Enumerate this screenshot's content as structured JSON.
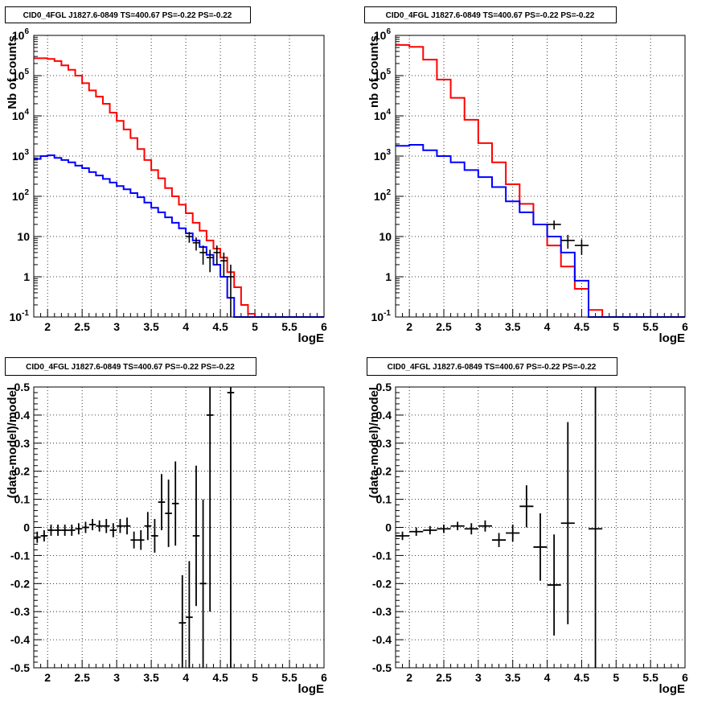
{
  "chart_data": [
    {
      "type": "line",
      "title": "CID0_4FGL J1827.6-0849 TS=400.67 PS=-0.22 PS=-0.22",
      "xlabel": "logE",
      "ylabel": "Nb of counts",
      "log_y": true,
      "xlim": [
        1.8,
        6.0
      ],
      "ylim": [
        0.1,
        1000000
      ],
      "grid": true,
      "xticks": [
        "2",
        "2.5",
        "3",
        "3.5",
        "4",
        "4.5",
        "5",
        "5.5",
        "6"
      ],
      "yticks": [
        "10^-1",
        "1",
        "10",
        "10^2",
        "10^3",
        "10^4",
        "10^5",
        "10^6"
      ],
      "bin_edges": [
        1.8,
        1.9,
        2.0,
        2.1,
        2.2,
        2.3,
        2.4,
        2.5,
        2.6,
        2.7,
        2.8,
        2.9,
        3.0,
        3.1,
        3.2,
        3.3,
        3.4,
        3.5,
        3.6,
        3.7,
        3.8,
        3.9,
        4.0,
        4.1,
        4.2,
        4.3,
        4.4,
        4.5,
        4.6,
        4.7,
        4.8,
        4.9,
        5.0,
        5.1,
        5.2,
        5.3,
        5.4,
        5.5,
        5.6,
        5.7,
        5.8,
        5.9,
        6.0
      ],
      "series": [
        {
          "color": "#ff0000",
          "values": [
            270000,
            270000,
            260000,
            230000,
            180000,
            140000,
            100000,
            65000,
            43000,
            30000,
            20000,
            12000,
            7500,
            4600,
            2800,
            1500,
            800,
            450,
            280,
            160,
            100,
            62,
            38,
            22,
            14,
            8,
            5,
            3,
            1.3,
            0.55,
            0.2,
            0.12,
            0.1,
            0.1,
            0.1,
            0.1,
            0.1,
            0.1,
            0.1,
            0.1,
            0.1,
            0.1
          ]
        },
        {
          "color": "#0000ff",
          "values": [
            850,
            1000,
            1050,
            900,
            800,
            700,
            580,
            500,
            400,
            330,
            270,
            220,
            180,
            150,
            120,
            95,
            70,
            52,
            40,
            30,
            22,
            16,
            12,
            8,
            5.5,
            3.5,
            2,
            1,
            0.3,
            0.1,
            0.1,
            0.1,
            0.1,
            0.1,
            0.1,
            0.1,
            0.1,
            0.1,
            0.1,
            0.1,
            0.1,
            0.1
          ]
        }
      ],
      "data_points": {
        "color": "#000000",
        "x": [
          4.05,
          4.15,
          4.25,
          4.35,
          4.45,
          4.55,
          4.65
        ],
        "y": [
          10,
          7,
          4,
          3,
          4,
          2.5,
          1
        ],
        "yerr": [
          3,
          2.5,
          2,
          1.7,
          2,
          1.5,
          1
        ]
      }
    },
    {
      "type": "line",
      "title": "CID0_4FGL J1827.6-0849 TS=400.67 PS=-0.22 PS=-0.22",
      "xlabel": "logE",
      "ylabel": "nb of counts",
      "log_y": true,
      "xlim": [
        1.8,
        6.0
      ],
      "ylim": [
        0.1,
        1000000
      ],
      "grid": true,
      "xticks": [
        "2",
        "2.5",
        "3",
        "3.5",
        "4",
        "4.5",
        "5",
        "5.5",
        "6"
      ],
      "yticks": [
        "10^-1",
        "1",
        "10",
        "10^2",
        "10^3",
        "10^4",
        "10^5",
        "10^6"
      ],
      "bin_edges": [
        1.8,
        2.0,
        2.2,
        2.4,
        2.6,
        2.8,
        3.0,
        3.2,
        3.4,
        3.6,
        3.8,
        4.0,
        4.2,
        4.4,
        4.6,
        4.8,
        5.0,
        5.2,
        5.4,
        5.6,
        5.8,
        6.0
      ],
      "series": [
        {
          "color": "#ff0000",
          "values": [
            580000,
            520000,
            250000,
            80000,
            28000,
            8000,
            2100,
            700,
            200,
            65,
            20,
            6,
            1.8,
            0.5,
            0.15,
            0.1,
            0.1,
            0.1,
            0.1,
            0.1,
            0.1
          ]
        },
        {
          "color": "#0000ff",
          "values": [
            1800,
            1900,
            1400,
            1000,
            700,
            450,
            300,
            170,
            75,
            40,
            20,
            10,
            4,
            0.8,
            0.1,
            0.1,
            0.1,
            0.1,
            0.1,
            0.1,
            0.1
          ]
        }
      ],
      "data_points": {
        "color": "#000000",
        "x": [
          4.1,
          4.3,
          4.5
        ],
        "y": [
          20,
          8,
          6
        ],
        "yerr": [
          5,
          3,
          2.5
        ]
      }
    },
    {
      "type": "scatter",
      "title": "CID0_4FGL J1827.6-0849 TS=400.67 PS=-0.22 PS=-0.22",
      "xlabel": "logE",
      "ylabel": "(data-model)/model",
      "xlim": [
        1.8,
        6.0
      ],
      "ylim": [
        -0.5,
        0.5
      ],
      "grid": true,
      "xticks": [
        "2",
        "2.5",
        "3",
        "3.5",
        "4",
        "4.5",
        "5",
        "5.5",
        "6"
      ],
      "yticks": [
        "-0.5",
        "-0.4",
        "-0.3",
        "-0.2",
        "-0.1",
        "0",
        "0.1",
        "0.2",
        "0.3",
        "0.4",
        "0.5"
      ],
      "x_half_width": 0.05,
      "points": [
        {
          "x": 1.85,
          "y": -0.035,
          "e": 0.02
        },
        {
          "x": 1.95,
          "y": -0.03,
          "e": 0.02
        },
        {
          "x": 2.05,
          "y": -0.01,
          "e": 0.02
        },
        {
          "x": 2.15,
          "y": -0.01,
          "e": 0.02
        },
        {
          "x": 2.25,
          "y": -0.01,
          "e": 0.02
        },
        {
          "x": 2.35,
          "y": -0.01,
          "e": 0.02
        },
        {
          "x": 2.45,
          "y": -0.005,
          "e": 0.02
        },
        {
          "x": 2.55,
          "y": 0.0,
          "e": 0.02
        },
        {
          "x": 2.65,
          "y": 0.01,
          "e": 0.02
        },
        {
          "x": 2.75,
          "y": 0.005,
          "e": 0.02
        },
        {
          "x": 2.85,
          "y": 0.005,
          "e": 0.025
        },
        {
          "x": 2.95,
          "y": -0.01,
          "e": 0.025
        },
        {
          "x": 3.05,
          "y": 0.005,
          "e": 0.025
        },
        {
          "x": 3.15,
          "y": 0.005,
          "e": 0.03
        },
        {
          "x": 3.25,
          "y": -0.045,
          "e": 0.03
        },
        {
          "x": 3.35,
          "y": -0.045,
          "e": 0.035
        },
        {
          "x": 3.45,
          "y": 0.005,
          "e": 0.05
        },
        {
          "x": 3.55,
          "y": -0.03,
          "e": 0.06
        },
        {
          "x": 3.65,
          "y": 0.09,
          "e": 0.1
        },
        {
          "x": 3.75,
          "y": 0.05,
          "e": 0.12
        },
        {
          "x": 3.85,
          "y": 0.085,
          "e": 0.15
        },
        {
          "x": 3.95,
          "y": -0.34,
          "e": 0.17
        },
        {
          "x": 4.05,
          "y": -0.32,
          "e": 0.2
        },
        {
          "x": 4.15,
          "y": -0.03,
          "e": 0.25
        },
        {
          "x": 4.25,
          "y": -0.2,
          "e": 0.3
        },
        {
          "x": 4.35,
          "y": 0.4,
          "e": 0.7
        },
        {
          "x": 4.65,
          "y": 0.48,
          "e": 1.0
        }
      ]
    },
    {
      "type": "scatter",
      "title": "CID0_4FGL J1827.6-0849 TS=400.67 PS=-0.22 PS=-0.22",
      "xlabel": "logE",
      "ylabel": "(data-model)/model",
      "xlim": [
        1.8,
        6.0
      ],
      "ylim": [
        -0.5,
        0.5
      ],
      "grid": true,
      "xticks": [
        "2",
        "2.5",
        "3",
        "3.5",
        "4",
        "4.5",
        "5",
        "5.5",
        "6"
      ],
      "yticks": [
        "-0.5",
        "-0.4",
        "-0.3",
        "-0.2",
        "-0.1",
        "0",
        "0.1",
        "0.2",
        "0.3",
        "0.4",
        "0.5"
      ],
      "x_half_width": 0.1,
      "points": [
        {
          "x": 1.9,
          "y": -0.03,
          "e": 0.015
        },
        {
          "x": 2.1,
          "y": -0.015,
          "e": 0.015
        },
        {
          "x": 2.3,
          "y": -0.01,
          "e": 0.015
        },
        {
          "x": 2.5,
          "y": -0.005,
          "e": 0.015
        },
        {
          "x": 2.7,
          "y": 0.005,
          "e": 0.015
        },
        {
          "x": 2.9,
          "y": -0.005,
          "e": 0.02
        },
        {
          "x": 3.1,
          "y": 0.005,
          "e": 0.02
        },
        {
          "x": 3.3,
          "y": -0.045,
          "e": 0.025
        },
        {
          "x": 3.5,
          "y": -0.02,
          "e": 0.03
        },
        {
          "x": 3.7,
          "y": 0.075,
          "e": 0.075
        },
        {
          "x": 3.9,
          "y": -0.07,
          "e": 0.12
        },
        {
          "x": 4.1,
          "y": -0.205,
          "e": 0.18
        },
        {
          "x": 4.3,
          "y": 0.015,
          "e": 0.36
        },
        {
          "x": 4.7,
          "y": -0.005,
          "e": 1.0
        }
      ]
    }
  ]
}
